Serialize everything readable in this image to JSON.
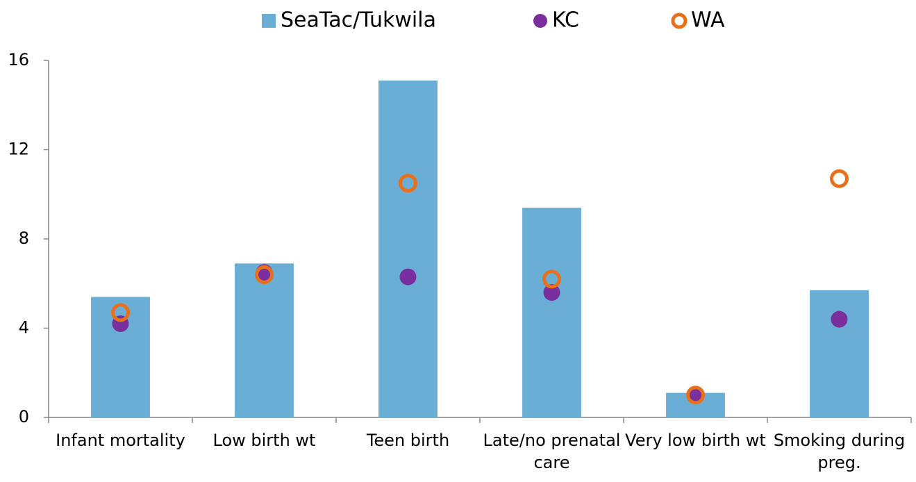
{
  "chart_data": {
    "type": "bar",
    "categories": [
      "Infant mortality",
      "Low birth wt",
      "Teen birth",
      "Late/no prenatal care",
      "Very low birth wt",
      "Smoking during preg."
    ],
    "series": [
      {
        "name": "SeaTac/Tukwila",
        "type": "bar",
        "color": "#6aaed6",
        "values": [
          5.4,
          6.9,
          15.1,
          9.4,
          1.1,
          5.7
        ]
      },
      {
        "name": "KC",
        "type": "dot",
        "color": "#7b2f9e",
        "values": [
          4.2,
          6.5,
          6.3,
          5.6,
          1.0,
          4.4
        ]
      },
      {
        "name": "WA",
        "type": "ring",
        "color": "#e8701a",
        "values": [
          4.7,
          6.4,
          10.5,
          6.2,
          1.0,
          10.7
        ]
      }
    ],
    "ylim": [
      0,
      16
    ],
    "yticks": [
      0,
      4,
      8,
      12,
      16
    ],
    "legend": "top"
  }
}
